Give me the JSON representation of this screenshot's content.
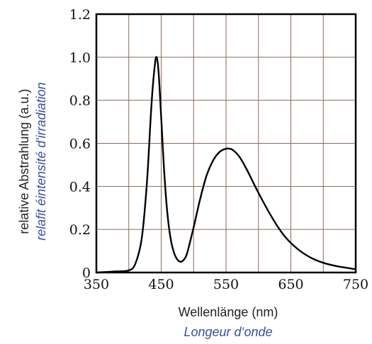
{
  "chart_data": {
    "type": "line",
    "title": "",
    "xlabel": "Wellenlänge (nm)",
    "xlabel_alt": "Longeur d‘onde",
    "ylabel": "relative Abstrahlung (a.u.)",
    "ylabel_alt": "relafit éintensité d'irradiation",
    "xlim": [
      350,
      750
    ],
    "ylim": [
      0,
      1.2
    ],
    "grid": true,
    "x_ticks": [
      "350",
      "450",
      "550",
      "650",
      "750"
    ],
    "y_ticks": [
      "0",
      "0.2",
      "0.4",
      "0.6",
      "0.8",
      "1.0",
      "1.2"
    ],
    "series": [
      {
        "x": [
          350,
          380,
          400,
          410,
          420,
          428,
          435,
          440,
          443,
          446,
          450,
          455,
          460,
          465,
          470,
          475,
          480,
          485,
          490,
          500,
          510,
          520,
          530,
          540,
          550,
          555,
          560,
          570,
          580,
          590,
          600,
          620,
          640,
          660,
          680,
          700,
          720,
          740,
          750
        ],
        "y": [
          0.0,
          0.005,
          0.01,
          0.04,
          0.16,
          0.42,
          0.78,
          0.96,
          1.0,
          0.93,
          0.72,
          0.45,
          0.26,
          0.15,
          0.09,
          0.06,
          0.05,
          0.06,
          0.09,
          0.21,
          0.34,
          0.45,
          0.52,
          0.56,
          0.575,
          0.575,
          0.57,
          0.54,
          0.49,
          0.43,
          0.37,
          0.26,
          0.17,
          0.11,
          0.07,
          0.045,
          0.03,
          0.02,
          0.015
        ]
      }
    ]
  }
}
